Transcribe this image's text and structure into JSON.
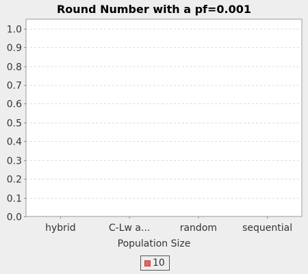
{
  "chart_data": {
    "type": "bar",
    "title": "Round Number with a pf=0.001",
    "xlabel": "Population Size",
    "ylabel": "",
    "categories": [
      "hybrid",
      "C-Lw a...",
      "random",
      "sequential"
    ],
    "series": [
      {
        "name": "10",
        "values": [
          0,
          0,
          0,
          0
        ],
        "color": "#f06060"
      }
    ],
    "ylim": [
      0.0,
      1.05
    ],
    "yticks": [
      "0.0",
      "0.1",
      "0.2",
      "0.3",
      "0.4",
      "0.5",
      "0.6",
      "0.7",
      "0.8",
      "0.9",
      "1.0"
    ],
    "grid": true,
    "legend_position": "bottom"
  },
  "colors": {
    "plot_background": "#ffffff",
    "page_background": "#eeeeee",
    "gridline": "#dddddd",
    "series_10": "#f06060"
  }
}
